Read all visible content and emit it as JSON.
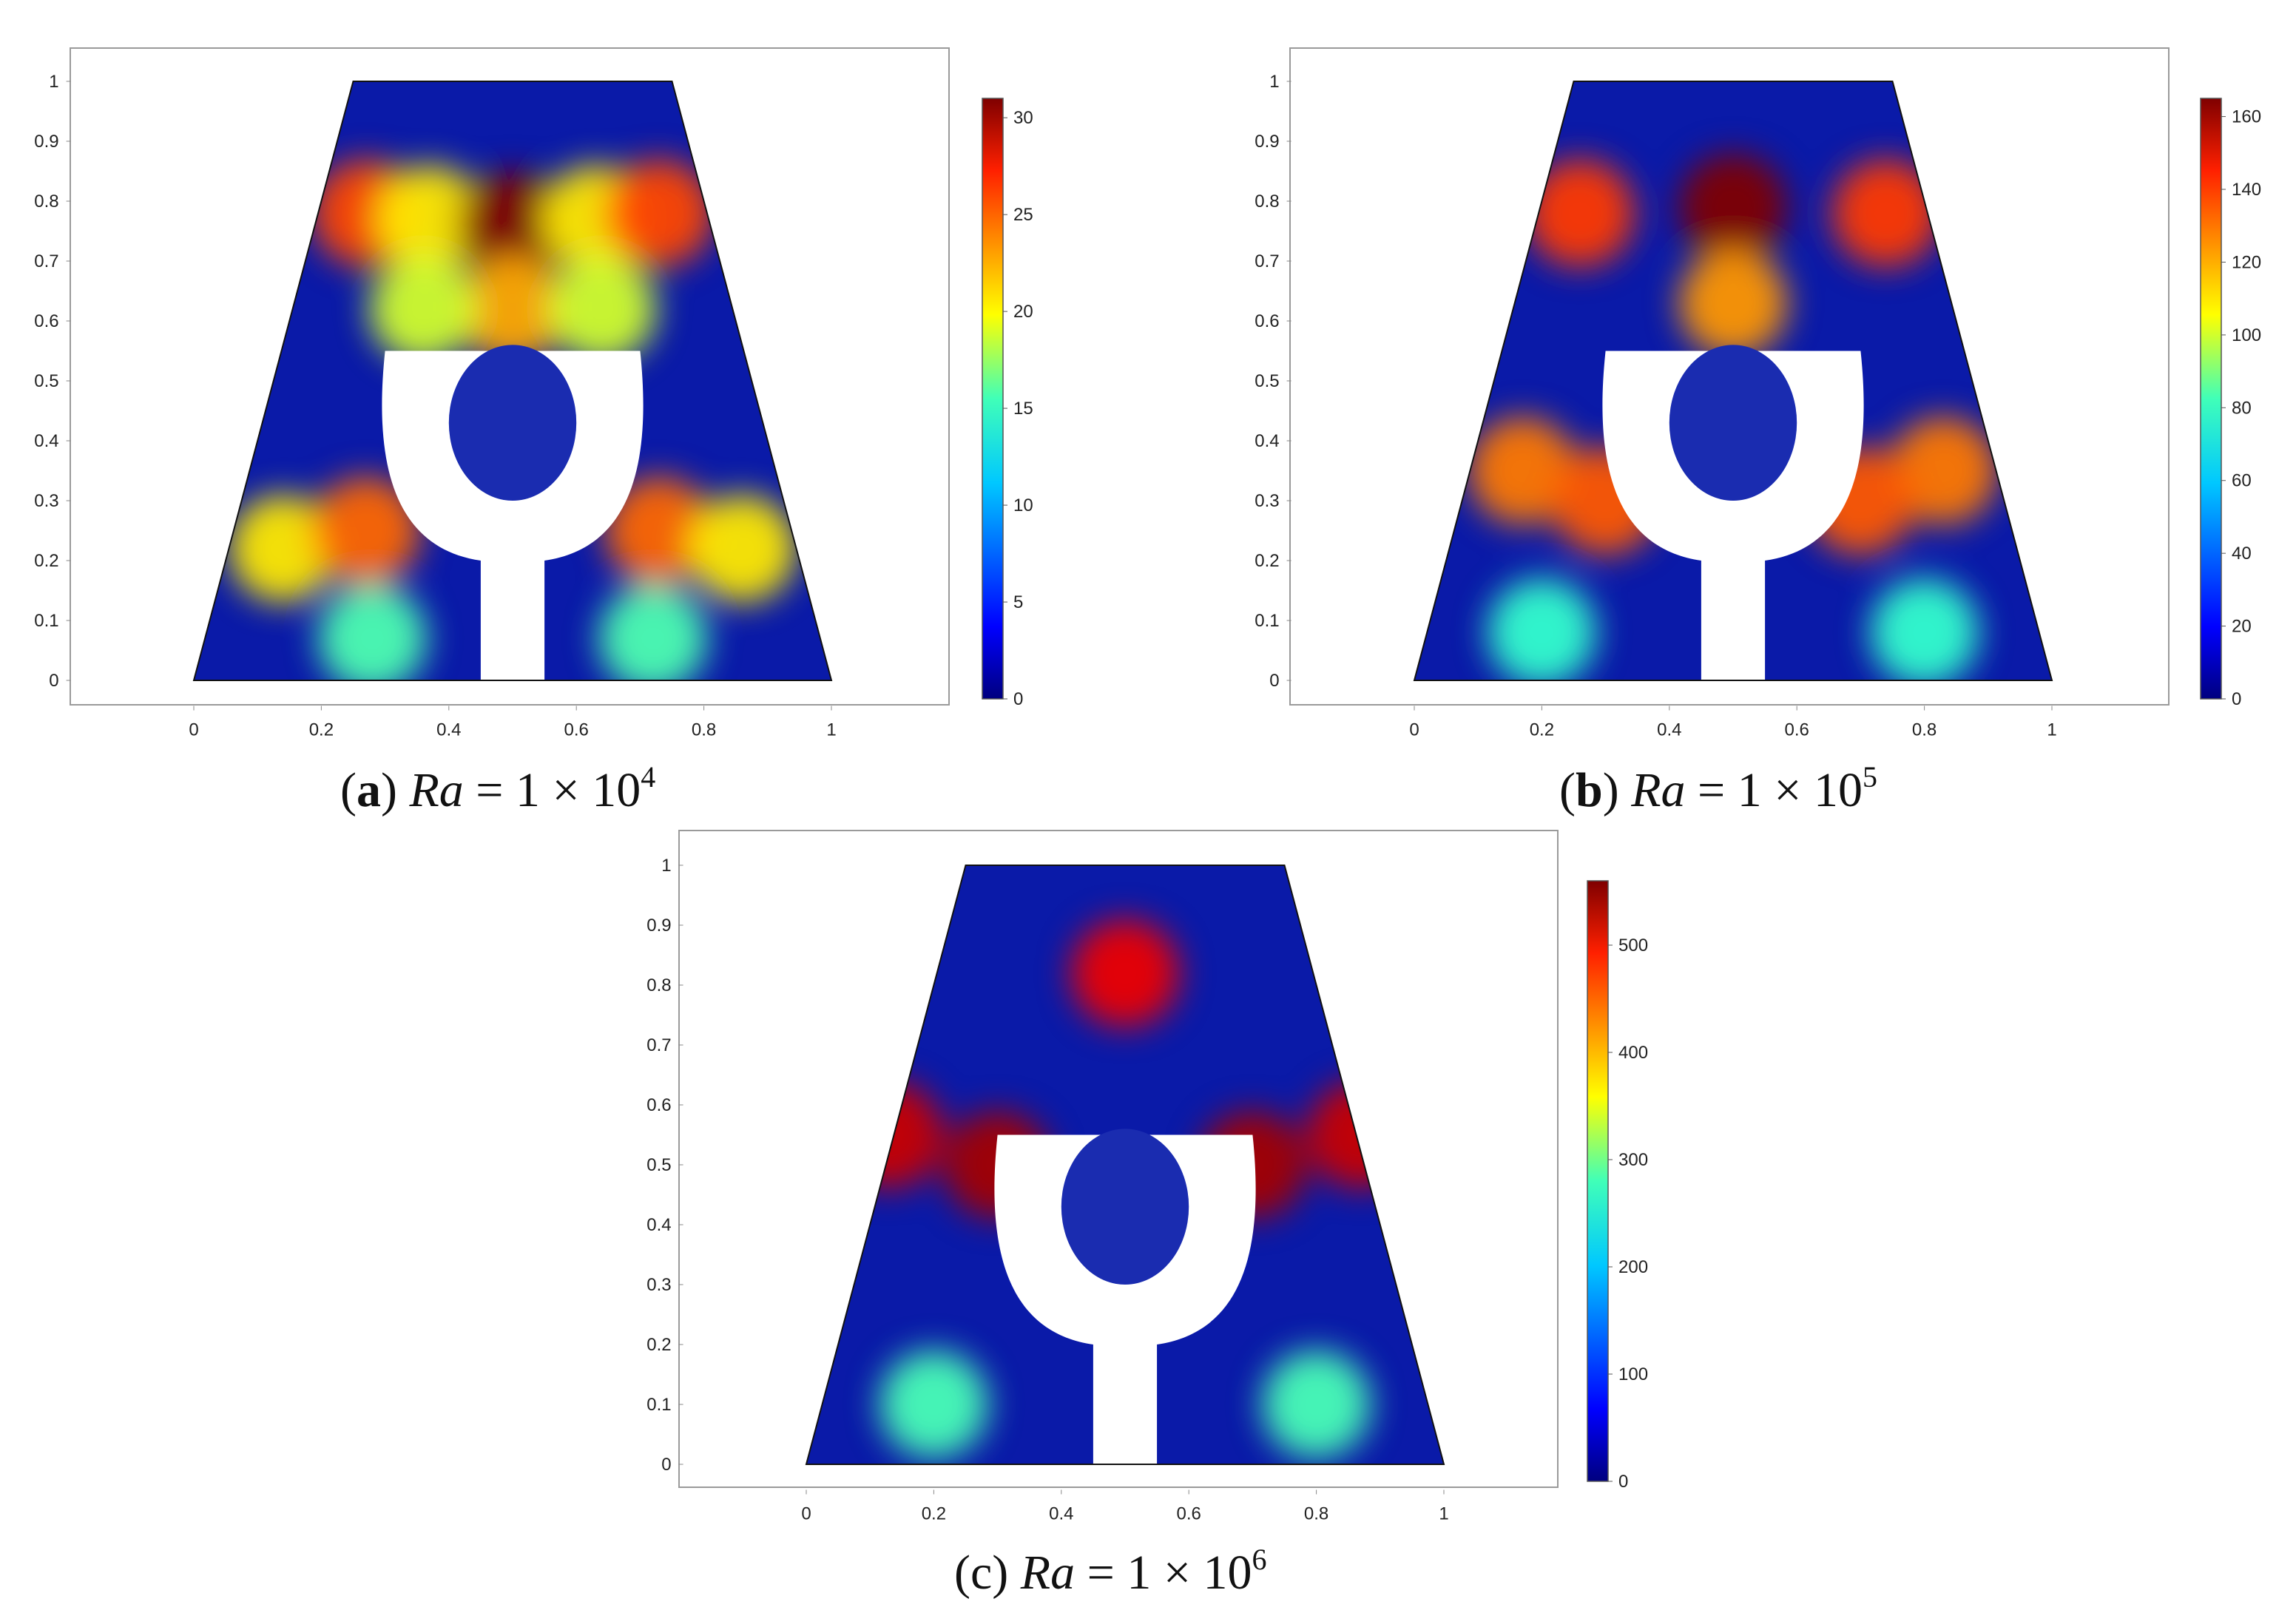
{
  "chart_data": [
    {
      "type": "heatmap",
      "panel_letter": "a",
      "caption_var": "Ra",
      "caption_eq": " = 1 × 10",
      "caption_exp": "4",
      "xticks": [
        "0",
        "0.2",
        "0.4",
        "0.6",
        "0.8",
        "1"
      ],
      "yticks": [
        "0",
        "0.1",
        "0.2",
        "0.3",
        "0.4",
        "0.5",
        "0.6",
        "0.7",
        "0.8",
        "0.9",
        "1"
      ],
      "xlim": [
        -0.2,
        1.2
      ],
      "ylim": [
        -0.05,
        1.05
      ],
      "colorbar_ticks": [
        "0",
        "5",
        "10",
        "15",
        "20",
        "25",
        "30"
      ],
      "colorbar_range": [
        0,
        31
      ],
      "cells": [
        {
          "x": 0.27,
          "y": 0.78,
          "value": 25
        },
        {
          "x": 0.37,
          "y": 0.77,
          "value": 20
        },
        {
          "x": 0.5,
          "y": 0.76,
          "value": 31
        },
        {
          "x": 0.63,
          "y": 0.77,
          "value": 20
        },
        {
          "x": 0.73,
          "y": 0.78,
          "value": 25
        },
        {
          "x": 0.5,
          "y": 0.62,
          "value": 22
        },
        {
          "x": 0.36,
          "y": 0.62,
          "value": 18
        },
        {
          "x": 0.64,
          "y": 0.62,
          "value": 18
        },
        {
          "x": 0.14,
          "y": 0.22,
          "value": 20
        },
        {
          "x": 0.27,
          "y": 0.25,
          "value": 24
        },
        {
          "x": 0.73,
          "y": 0.25,
          "value": 24
        },
        {
          "x": 0.86,
          "y": 0.22,
          "value": 20
        },
        {
          "x": 0.28,
          "y": 0.07,
          "value": 14
        },
        {
          "x": 0.72,
          "y": 0.07,
          "value": 14
        }
      ]
    },
    {
      "type": "heatmap",
      "panel_letter": "b",
      "caption_var": "Ra",
      "caption_eq": " = 1 × 10",
      "caption_exp": "5",
      "xticks": [
        "0",
        "0.2",
        "0.4",
        "0.6",
        "0.8",
        "1"
      ],
      "yticks": [
        "0",
        "0.1",
        "0.2",
        "0.3",
        "0.4",
        "0.5",
        "0.6",
        "0.7",
        "0.8",
        "0.9",
        "1"
      ],
      "xlim": [
        -0.2,
        1.2
      ],
      "ylim": [
        -0.05,
        1.05
      ],
      "colorbar_ticks": [
        "0",
        "20",
        "40",
        "60",
        "80",
        "100",
        "120",
        "140",
        "160"
      ],
      "colorbar_range": [
        0,
        165
      ],
      "cells": [
        {
          "x": 0.26,
          "y": 0.78,
          "value": 135
        },
        {
          "x": 0.5,
          "y": 0.79,
          "value": 165
        },
        {
          "x": 0.74,
          "y": 0.78,
          "value": 135
        },
        {
          "x": 0.5,
          "y": 0.63,
          "value": 120
        },
        {
          "x": 0.17,
          "y": 0.35,
          "value": 125
        },
        {
          "x": 0.83,
          "y": 0.35,
          "value": 125
        },
        {
          "x": 0.3,
          "y": 0.3,
          "value": 130
        },
        {
          "x": 0.7,
          "y": 0.3,
          "value": 130
        },
        {
          "x": 0.2,
          "y": 0.08,
          "value": 70
        },
        {
          "x": 0.8,
          "y": 0.08,
          "value": 70
        }
      ]
    },
    {
      "type": "heatmap",
      "panel_letter": "c",
      "caption_var": "Ra",
      "caption_eq": " = 1 × 10",
      "caption_exp": "6",
      "xticks": [
        "0",
        "0.2",
        "0.4",
        "0.6",
        "0.8",
        "1"
      ],
      "yticks": [
        "0",
        "0.1",
        "0.2",
        "0.3",
        "0.4",
        "0.5",
        "0.6",
        "0.7",
        "0.8",
        "0.9",
        "1"
      ],
      "xlim": [
        -0.2,
        1.2
      ],
      "ylim": [
        -0.05,
        1.05
      ],
      "colorbar_ticks": [
        "0",
        "100",
        "200",
        "300",
        "400",
        "500"
      ],
      "colorbar_range": [
        0,
        560
      ],
      "cells": [
        {
          "x": 0.13,
          "y": 0.55,
          "value": 520
        },
        {
          "x": 0.87,
          "y": 0.55,
          "value": 520
        },
        {
          "x": 0.5,
          "y": 0.82,
          "value": 500
        },
        {
          "x": 0.3,
          "y": 0.5,
          "value": 540
        },
        {
          "x": 0.7,
          "y": 0.5,
          "value": 540
        },
        {
          "x": 0.2,
          "y": 0.1,
          "value": 250
        },
        {
          "x": 0.8,
          "y": 0.1,
          "value": 250
        }
      ]
    }
  ]
}
